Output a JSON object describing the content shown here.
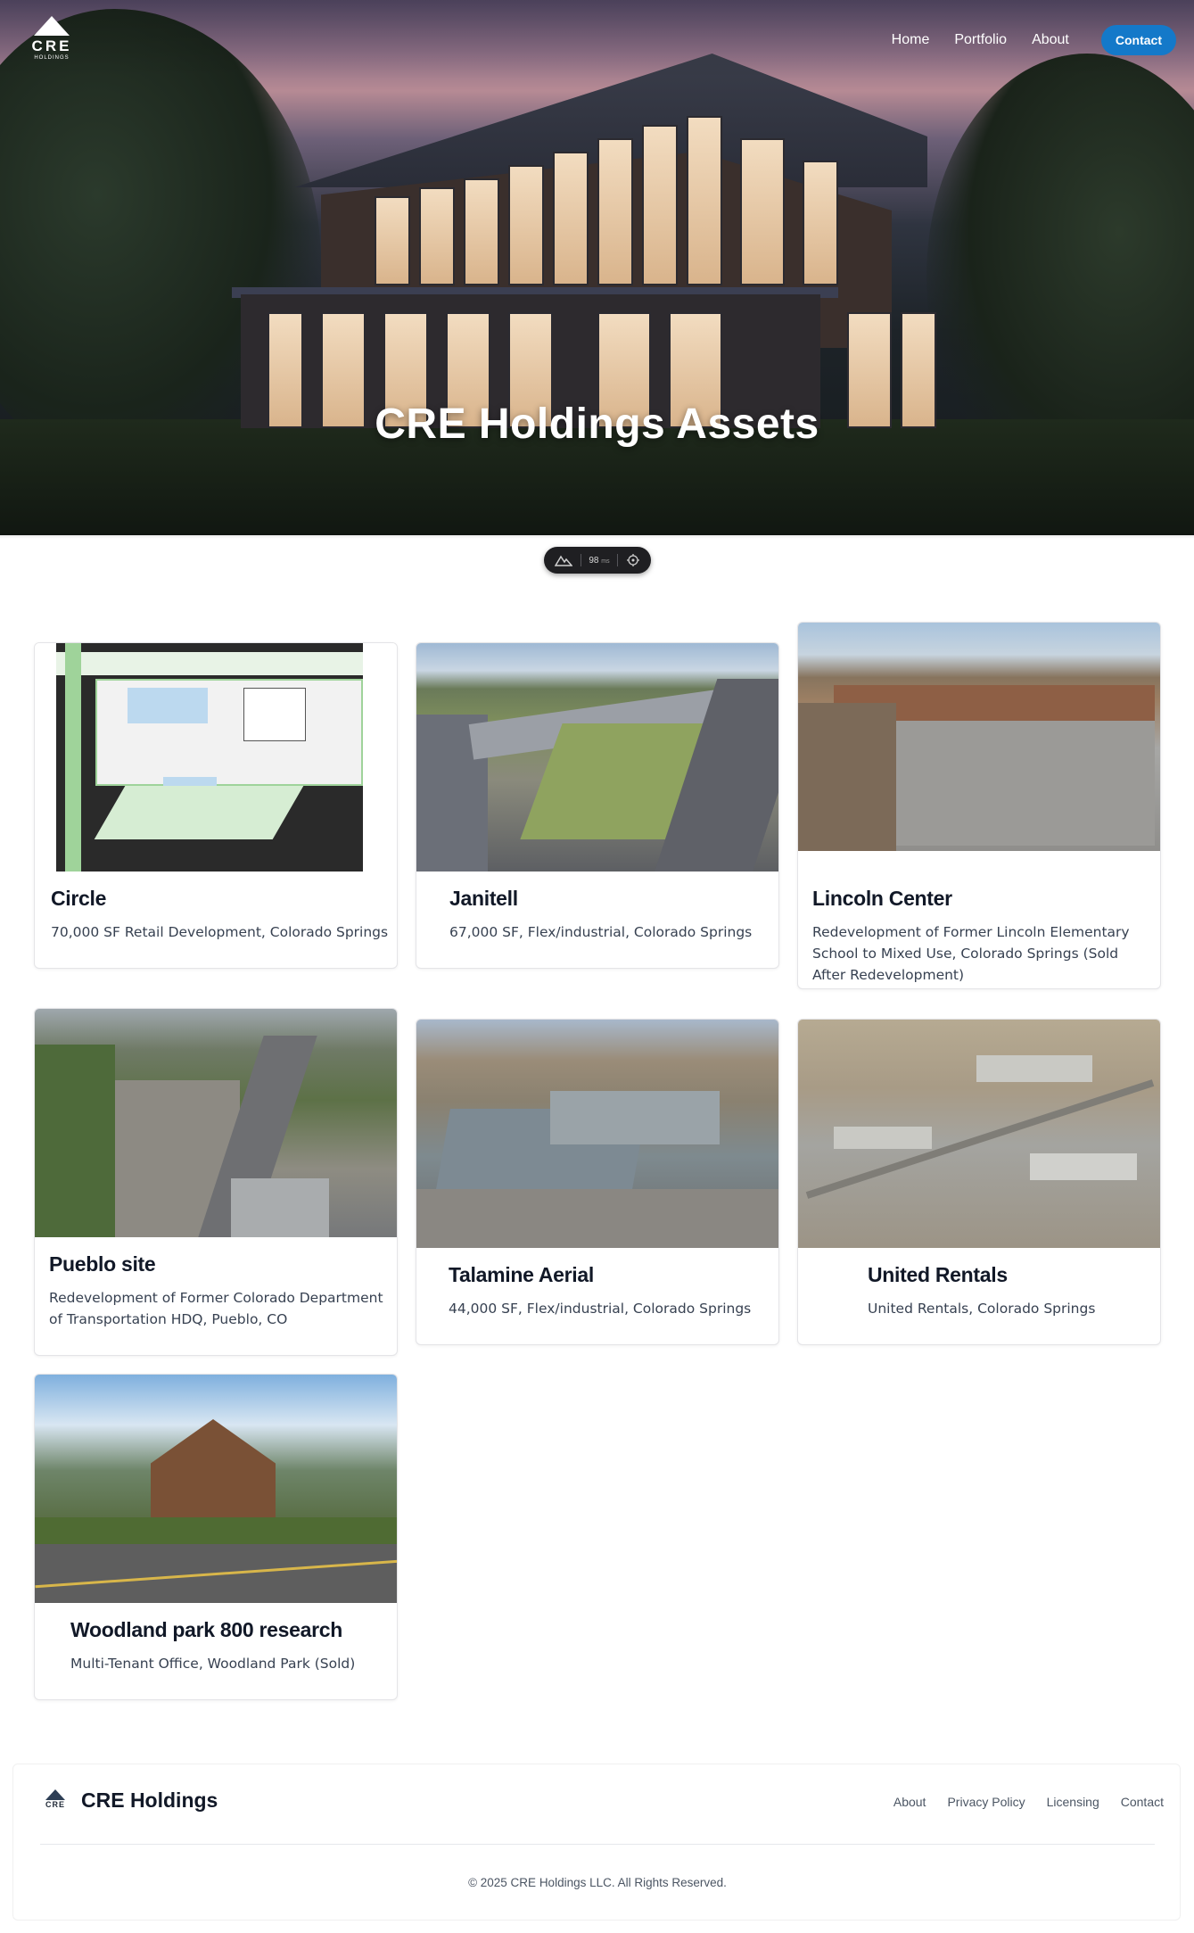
{
  "header": {
    "logo_text": "CRE",
    "logo_subtext": "HOLDINGS",
    "nav": [
      "Home",
      "Portfolio",
      "About"
    ],
    "contact_label": "Contact"
  },
  "hero": {
    "title": "CRE Holdings Assets"
  },
  "perf_pill": {
    "value": "98",
    "unit": "ms"
  },
  "properties": [
    {
      "name": "Circle",
      "description": "70,000 SF Retail Development, Colorado Springs"
    },
    {
      "name": "Janitell",
      "description": "67,000 SF, Flex/industrial, Colorado Springs"
    },
    {
      "name": "Lincoln Center",
      "description": "Redevelopment of Former Lincoln Elementary School to Mixed Use, Colorado Springs (Sold After Redevelopment)"
    },
    {
      "name": "Pueblo site",
      "description": "Redevelopment of Former Colorado Department of Transportation HDQ, Pueblo, CO"
    },
    {
      "name": "Talamine Aerial",
      "description": "44,000 SF, Flex/industrial, Colorado Springs"
    },
    {
      "name": "United Rentals",
      "description": "United Rentals, Colorado Springs"
    },
    {
      "name": "Woodland park 800 research",
      "description": "Multi-Tenant Office, Woodland Park (Sold)"
    }
  ],
  "footer": {
    "logo_text": "CRE",
    "brand": "CRE Holdings",
    "links": [
      "About",
      "Privacy Policy",
      "Licensing",
      "Contact"
    ],
    "copyright": "© 2025 CRE Holdings LLC. All Rights Reserved."
  },
  "colors": {
    "accent": "#1479c9",
    "text": "#111827"
  }
}
